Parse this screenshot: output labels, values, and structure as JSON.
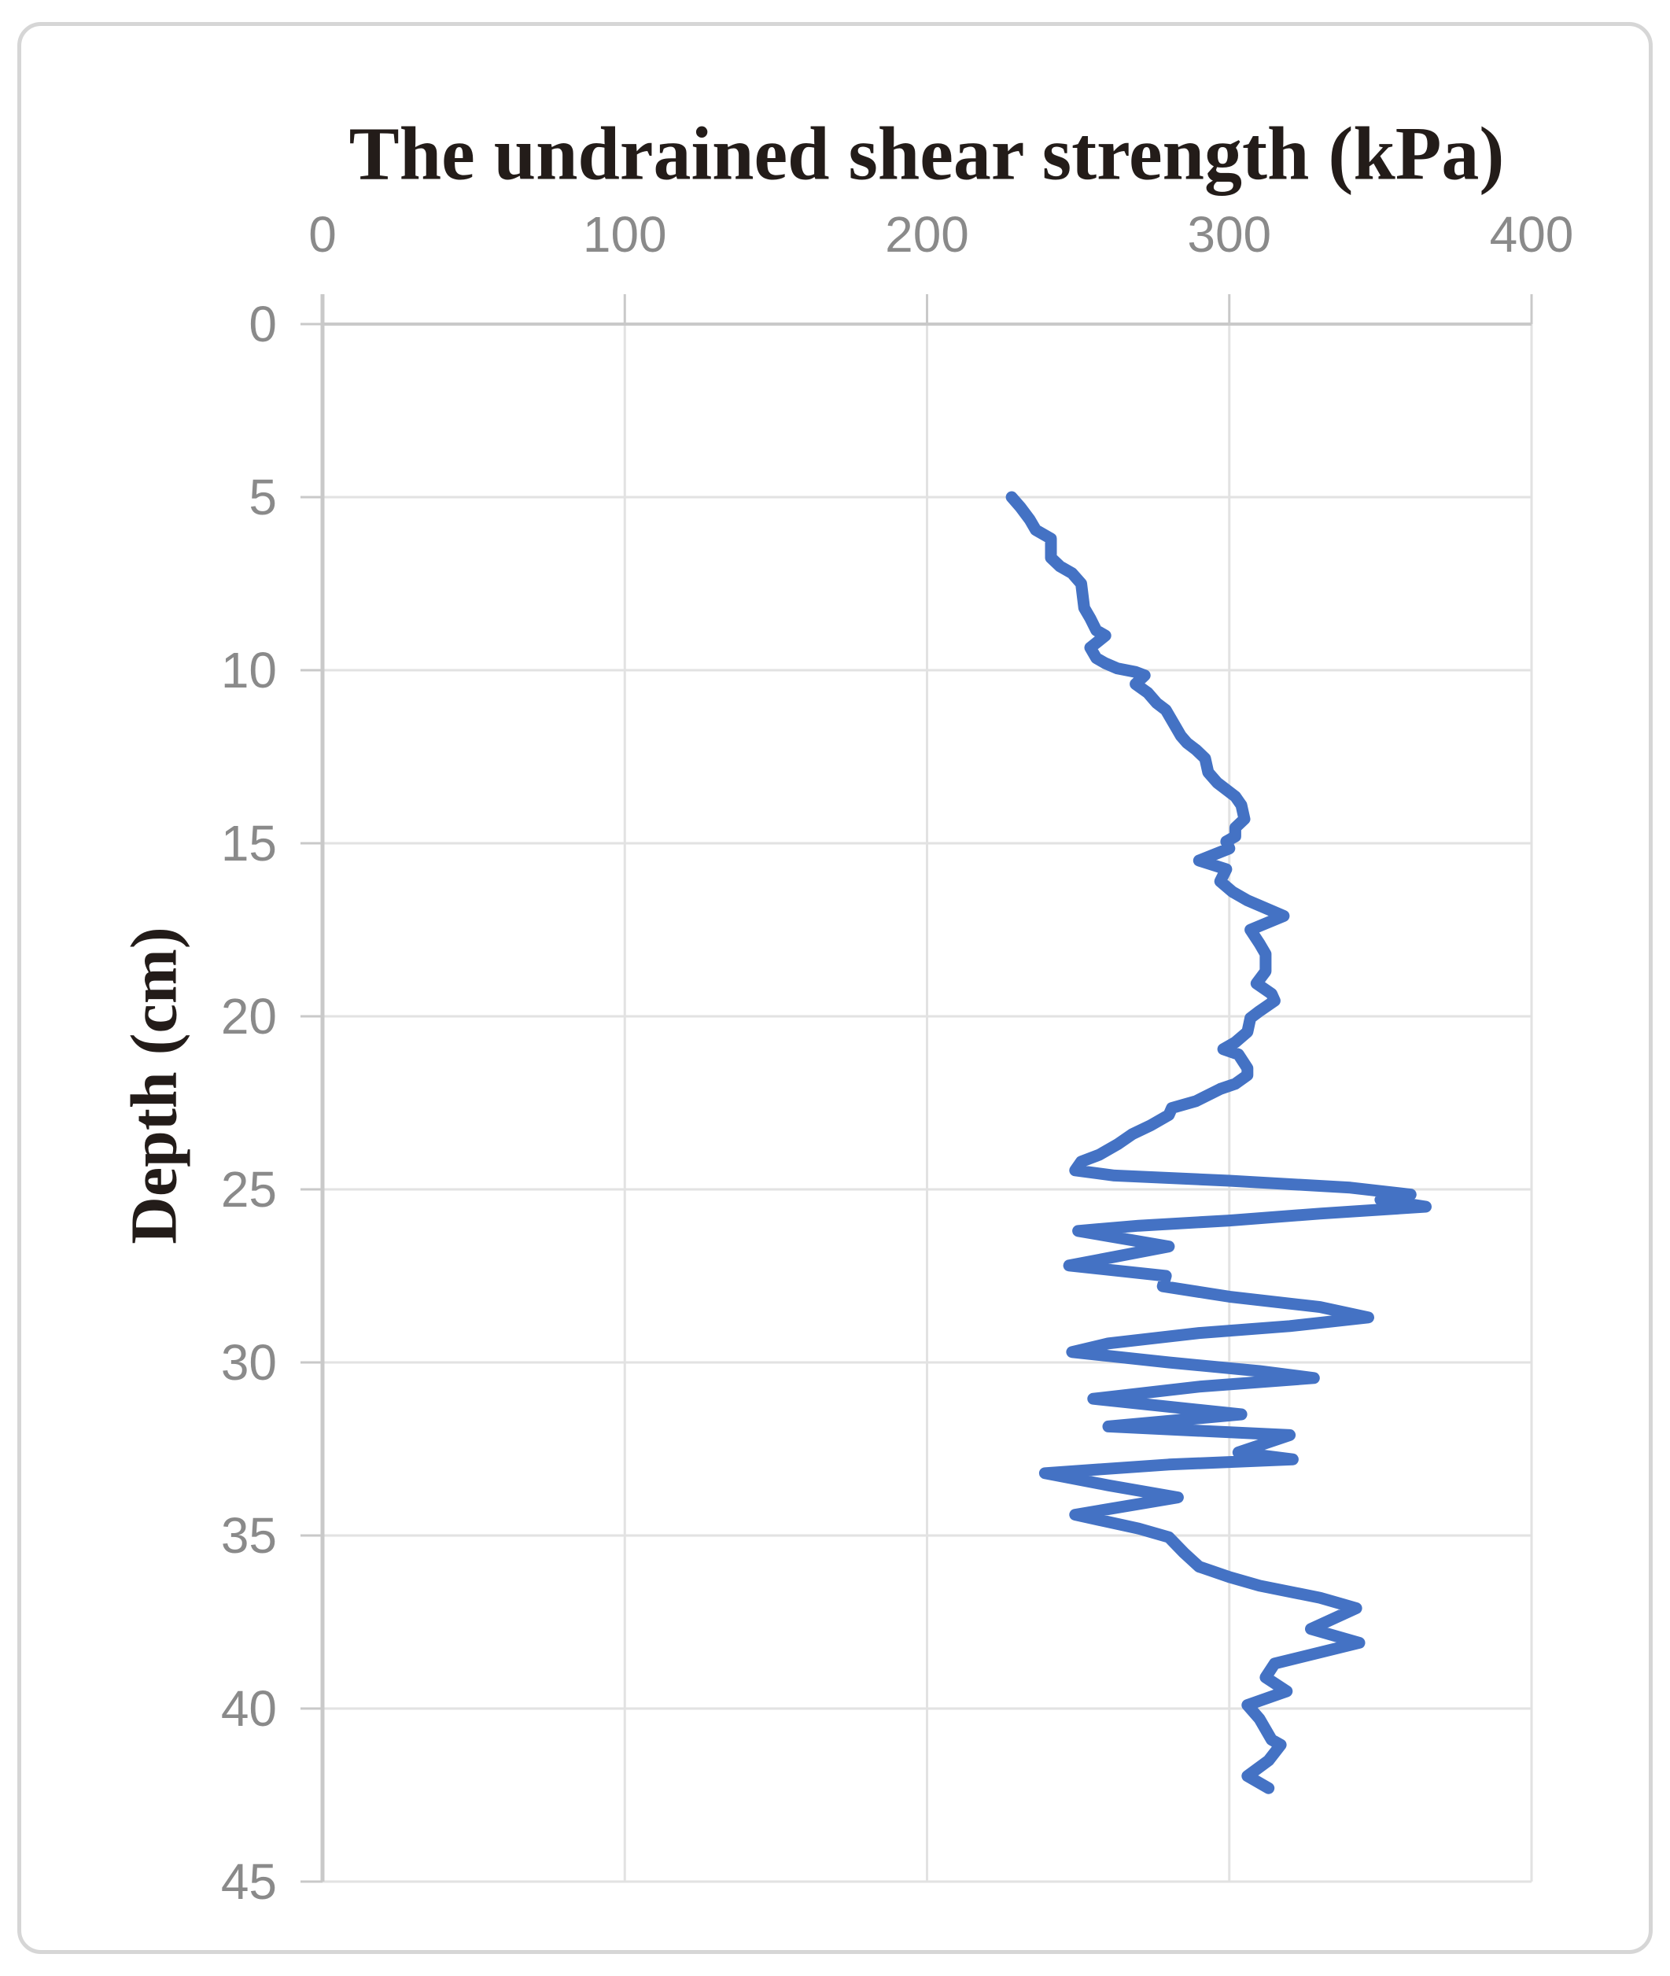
{
  "title": "The undrained shear strength (kPa)",
  "y_axis_label": "Depth (cm)",
  "colors": {
    "line": "#4472C4",
    "gridline": "#e2e2e2",
    "axis": "#c9c9c9",
    "tick_label": "#8a8a8a",
    "title_text": "#231c19",
    "frame_border": "#d6d6d6",
    "background": "#ffffff"
  },
  "chart_data": {
    "type": "line",
    "orientation": "depth-profile (x = value, y = depth increasing downward)",
    "title": "The undrained shear strength (kPa)",
    "xlabel": "The undrained shear strength (kPa)",
    "ylabel": "Depth (cm)",
    "x_ticks": [
      0,
      100,
      200,
      300,
      400
    ],
    "y_ticks": [
      0,
      5,
      10,
      15,
      20,
      25,
      30,
      35,
      40,
      45
    ],
    "xlim": [
      0,
      400
    ],
    "ylim": [
      0,
      45
    ],
    "grid": true,
    "legend": "none",
    "series": [
      {
        "name": "Undrained shear strength profile",
        "points_format": "[strength_kPa, depth_cm]",
        "points": [
          [
            228,
            5.0
          ],
          [
            231,
            5.3
          ],
          [
            234,
            5.65
          ],
          [
            236,
            5.95
          ],
          [
            241,
            6.2
          ],
          [
            241,
            6.75
          ],
          [
            244,
            7.0
          ],
          [
            248,
            7.2
          ],
          [
            251,
            7.5
          ],
          [
            252,
            8.2
          ],
          [
            254,
            8.5
          ],
          [
            256,
            8.85
          ],
          [
            259,
            9.0
          ],
          [
            254,
            9.35
          ],
          [
            256,
            9.65
          ],
          [
            259,
            9.8
          ],
          [
            263,
            9.95
          ],
          [
            269,
            10.05
          ],
          [
            272,
            10.15
          ],
          [
            269,
            10.4
          ],
          [
            273,
            10.65
          ],
          [
            276,
            10.95
          ],
          [
            279,
            11.15
          ],
          [
            282,
            11.6
          ],
          [
            284,
            11.9
          ],
          [
            286,
            12.1
          ],
          [
            289,
            12.3
          ],
          [
            292,
            12.55
          ],
          [
            293,
            12.95
          ],
          [
            296,
            13.25
          ],
          [
            302,
            13.65
          ],
          [
            304,
            13.9
          ],
          [
            305,
            14.3
          ],
          [
            302,
            14.55
          ],
          [
            302,
            14.8
          ],
          [
            299,
            14.95
          ],
          [
            300,
            15.15
          ],
          [
            290,
            15.5
          ],
          [
            299,
            15.75
          ],
          [
            297,
            16.1
          ],
          [
            301,
            16.4
          ],
          [
            306,
            16.65
          ],
          [
            318,
            17.1
          ],
          [
            307,
            17.5
          ],
          [
            310,
            17.9
          ],
          [
            312,
            18.2
          ],
          [
            312,
            18.7
          ],
          [
            309,
            19.05
          ],
          [
            314,
            19.35
          ],
          [
            315,
            19.55
          ],
          [
            310,
            19.85
          ],
          [
            307,
            20.05
          ],
          [
            306,
            20.45
          ],
          [
            302,
            20.75
          ],
          [
            298,
            20.95
          ],
          [
            303,
            21.1
          ],
          [
            306,
            21.5
          ],
          [
            306,
            21.7
          ],
          [
            302,
            21.95
          ],
          [
            297,
            22.1
          ],
          [
            289,
            22.45
          ],
          [
            281,
            22.65
          ],
          [
            280,
            22.85
          ],
          [
            274,
            23.15
          ],
          [
            268,
            23.4
          ],
          [
            263,
            23.7
          ],
          [
            257,
            24.0
          ],
          [
            251,
            24.2
          ],
          [
            249,
            24.45
          ],
          [
            262,
            24.6
          ],
          [
            300,
            24.75
          ],
          [
            340,
            24.95
          ],
          [
            360,
            25.15
          ],
          [
            350,
            25.3
          ],
          [
            365,
            25.5
          ],
          [
            330,
            25.7
          ],
          [
            300,
            25.9
          ],
          [
            270,
            26.05
          ],
          [
            250,
            26.2
          ],
          [
            280,
            26.65
          ],
          [
            247,
            27.2
          ],
          [
            279,
            27.5
          ],
          [
            278,
            27.8
          ],
          [
            300,
            28.1
          ],
          [
            330,
            28.4
          ],
          [
            346,
            28.7
          ],
          [
            320,
            28.95
          ],
          [
            290,
            29.15
          ],
          [
            260,
            29.45
          ],
          [
            248,
            29.7
          ],
          [
            280,
            30.0
          ],
          [
            310,
            30.25
          ],
          [
            328,
            30.45
          ],
          [
            290,
            30.7
          ],
          [
            255,
            31.05
          ],
          [
            304,
            31.5
          ],
          [
            260,
            31.85
          ],
          [
            320,
            32.1
          ],
          [
            303,
            32.6
          ],
          [
            321,
            32.8
          ],
          [
            280,
            32.95
          ],
          [
            239,
            33.2
          ],
          [
            260,
            33.55
          ],
          [
            283,
            33.9
          ],
          [
            249,
            34.4
          ],
          [
            270,
            34.8
          ],
          [
            280,
            35.05
          ],
          [
            285,
            35.5
          ],
          [
            290,
            35.9
          ],
          [
            300,
            36.2
          ],
          [
            310,
            36.45
          ],
          [
            330,
            36.8
          ],
          [
            342,
            37.1
          ],
          [
            327,
            37.7
          ],
          [
            343,
            38.1
          ],
          [
            315,
            38.7
          ],
          [
            312,
            39.1
          ],
          [
            319,
            39.5
          ],
          [
            306,
            39.9
          ],
          [
            310,
            40.3
          ],
          [
            314,
            40.9
          ],
          [
            317,
            41.05
          ],
          [
            313,
            41.5
          ],
          [
            306,
            41.95
          ],
          [
            313,
            42.3
          ]
        ]
      }
    ]
  }
}
